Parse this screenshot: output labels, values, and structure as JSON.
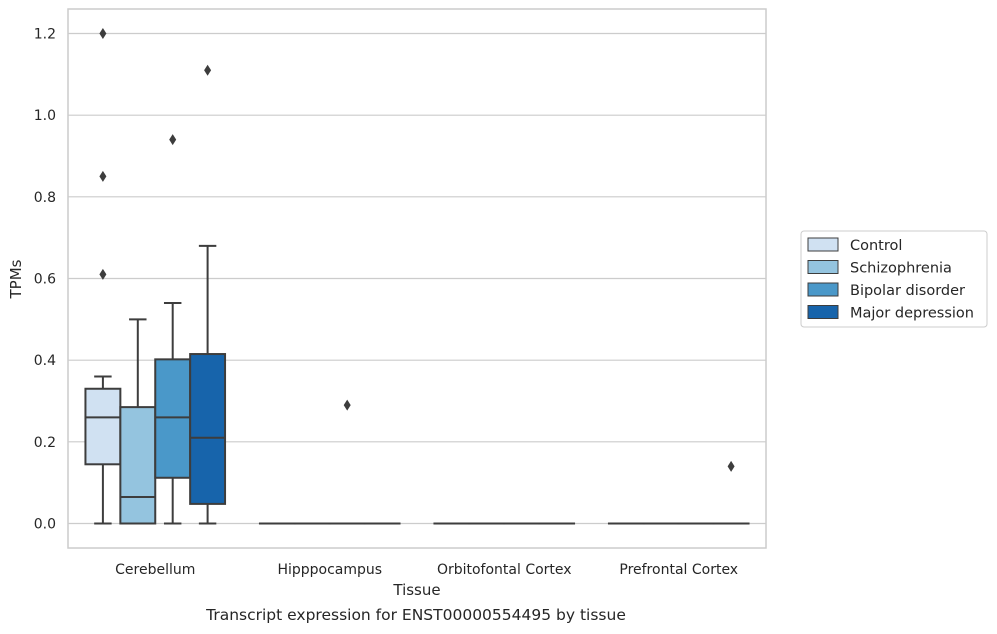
{
  "caption": "Transcript expression for ENST00000554495 by tissue",
  "chart_data": {
    "type": "box",
    "xlabel": "Tissue",
    "ylabel": "TPMs",
    "ylim": [
      -0.06,
      1.26
    ],
    "yticks": [
      "0.0",
      "0.2",
      "0.4",
      "0.6",
      "0.8",
      "1.0",
      "1.2"
    ],
    "categories": [
      "Cerebellum",
      "Hipppocampus",
      "Orbitofontal Cortex",
      "Prefrontal Cortex"
    ],
    "grid": true,
    "legend_position": "right",
    "series": [
      {
        "name": "Control",
        "color": "#d0e1f2",
        "boxes": [
          {
            "whisker_low": 0.0,
            "q1": 0.145,
            "median": 0.26,
            "q3": 0.33,
            "whisker_high": 0.36,
            "outliers": [
              0.61,
              0.85,
              1.2
            ]
          },
          {
            "whisker_low": 0.0,
            "q1": 0.0,
            "median": 0.0,
            "q3": 0.0,
            "whisker_high": 0.0,
            "outliers": []
          },
          {
            "whisker_low": 0.0,
            "q1": 0.0,
            "median": 0.0,
            "q3": 0.0,
            "whisker_high": 0.0,
            "outliers": []
          },
          {
            "whisker_low": 0.0,
            "q1": 0.0,
            "median": 0.0,
            "q3": 0.0,
            "whisker_high": 0.0,
            "outliers": []
          }
        ]
      },
      {
        "name": "Schizophrenia",
        "color": "#94c4df",
        "boxes": [
          {
            "whisker_low": 0.0,
            "q1": 0.0,
            "median": 0.065,
            "q3": 0.285,
            "whisker_high": 0.5,
            "outliers": []
          },
          {
            "whisker_low": 0.0,
            "q1": 0.0,
            "median": 0.0,
            "q3": 0.0,
            "whisker_high": 0.0,
            "outliers": []
          },
          {
            "whisker_low": 0.0,
            "q1": 0.0,
            "median": 0.0,
            "q3": 0.0,
            "whisker_high": 0.0,
            "outliers": []
          },
          {
            "whisker_low": 0.0,
            "q1": 0.0,
            "median": 0.0,
            "q3": 0.0,
            "whisker_high": 0.0,
            "outliers": []
          }
        ]
      },
      {
        "name": "Bipolar disorder",
        "color": "#4a98c9",
        "boxes": [
          {
            "whisker_low": 0.0,
            "q1": 0.112,
            "median": 0.26,
            "q3": 0.402,
            "whisker_high": 0.54,
            "outliers": [
              0.94
            ]
          },
          {
            "whisker_low": 0.0,
            "q1": 0.0,
            "median": 0.0,
            "q3": 0.0,
            "whisker_high": 0.0,
            "outliers": [
              0.29
            ]
          },
          {
            "whisker_low": 0.0,
            "q1": 0.0,
            "median": 0.0,
            "q3": 0.0,
            "whisker_high": 0.0,
            "outliers": []
          },
          {
            "whisker_low": 0.0,
            "q1": 0.0,
            "median": 0.0,
            "q3": 0.0,
            "whisker_high": 0.0,
            "outliers": []
          }
        ]
      },
      {
        "name": "Major depression",
        "color": "#1764ab",
        "boxes": [
          {
            "whisker_low": 0.0,
            "q1": 0.048,
            "median": 0.21,
            "q3": 0.415,
            "whisker_high": 0.68,
            "outliers": [
              1.11
            ]
          },
          {
            "whisker_low": 0.0,
            "q1": 0.0,
            "median": 0.0,
            "q3": 0.0,
            "whisker_high": 0.0,
            "outliers": []
          },
          {
            "whisker_low": 0.0,
            "q1": 0.0,
            "median": 0.0,
            "q3": 0.0,
            "whisker_high": 0.0,
            "outliers": []
          },
          {
            "whisker_low": 0.0,
            "q1": 0.0,
            "median": 0.0,
            "q3": 0.0,
            "whisker_high": 0.0,
            "outliers": [
              0.14
            ]
          }
        ]
      }
    ]
  }
}
